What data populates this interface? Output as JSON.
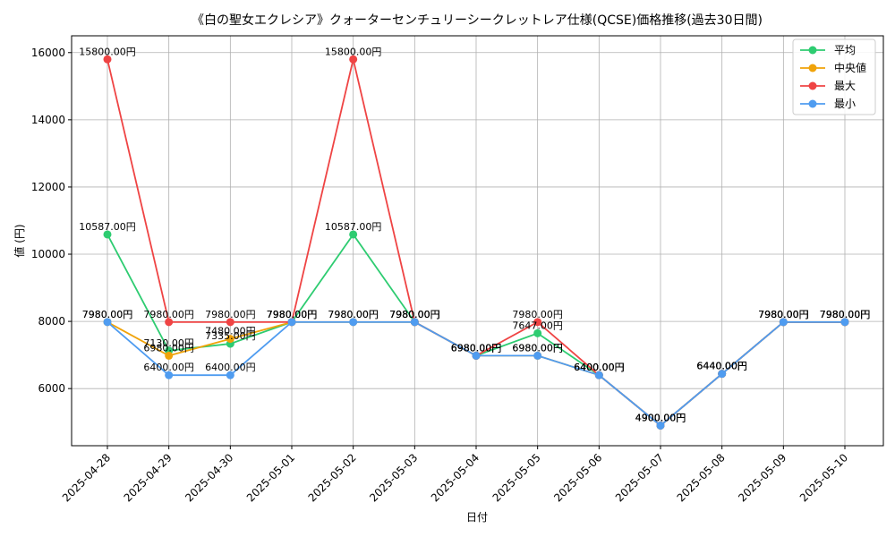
{
  "chart_data": {
    "type": "line",
    "title": "《白の聖女エクレシア》クォーターセンチュリーシークレットレア仕様(QCSE)価格推移(過去30日間)",
    "xlabel": "日付",
    "ylabel": "値 (円)",
    "categories": [
      "2025-04-28",
      "2025-04-29",
      "2025-04-30",
      "2025-05-01",
      "2025-05-02",
      "2025-05-03",
      "2025-05-04",
      "2025-05-05",
      "2025-05-06",
      "2025-05-07",
      "2025-05-08",
      "2025-05-09",
      "2025-05-10"
    ],
    "ylim": [
      4300,
      16500
    ],
    "yticks": [
      "6000",
      "8000",
      "10000",
      "12000",
      "14000",
      "16000"
    ],
    "grid": true,
    "legend_position": "top-right",
    "series": [
      {
        "name": "平均",
        "color": "#2ecc71",
        "values": [
          10587,
          7130,
          7335,
          7980,
          10587,
          7980,
          6980,
          7647,
          6400,
          4900,
          6440,
          7980,
          7980
        ],
        "labels": [
          "10587.00円",
          "7130.00円",
          "7335.00円",
          "7980.00円",
          "10587.00円",
          "7980.00円",
          "6980.00円",
          "7647.00円",
          "6400.00円",
          "4900.00円",
          "6440.00円",
          "7980.00円",
          "7980.00円"
        ]
      },
      {
        "name": "中央値",
        "color": "#f0a30a",
        "values": [
          7980,
          6980,
          7480,
          7980,
          7980,
          7980,
          6980,
          6980,
          6400,
          4900,
          6440,
          7980,
          7980
        ],
        "labels": [
          "7980.00円",
          "6980.00円",
          "7480.00円",
          "7980.00円",
          "7980.00円",
          "7980.00円",
          "6980.00円",
          "6980.00円",
          "6400.00円",
          "4900.00円",
          "6440.00円",
          "7980.00円",
          "7980.00円"
        ]
      },
      {
        "name": "最大",
        "color": "#ef4444",
        "values": [
          15800,
          7980,
          7980,
          7980,
          15800,
          7980,
          6980,
          7980,
          6400,
          4900,
          6440,
          7980,
          7980
        ],
        "labels": [
          "15800.00円",
          "7980.00円",
          "7980.00円",
          "7980.00円",
          "15800.00円",
          "7980.00円",
          "6980.00円",
          "7980.00円",
          "6400.00円",
          "4900.00円",
          "6440.00円",
          "7980.00円",
          "7980.00円"
        ]
      },
      {
        "name": "最小",
        "color": "#4f9cf0",
        "values": [
          7980,
          6400,
          6400,
          7980,
          7980,
          7980,
          6980,
          6980,
          6400,
          4900,
          6440,
          7980,
          7980
        ],
        "labels": [
          "7980.00円",
          "6400.00円",
          "6400.00円",
          "7980.00円",
          "7980.00円",
          "7980.00円",
          "6980.00円",
          "6980.00円",
          "6400.00円",
          "4900.00円",
          "6440.00円",
          "7980.00円",
          "7980.00円"
        ]
      }
    ]
  }
}
